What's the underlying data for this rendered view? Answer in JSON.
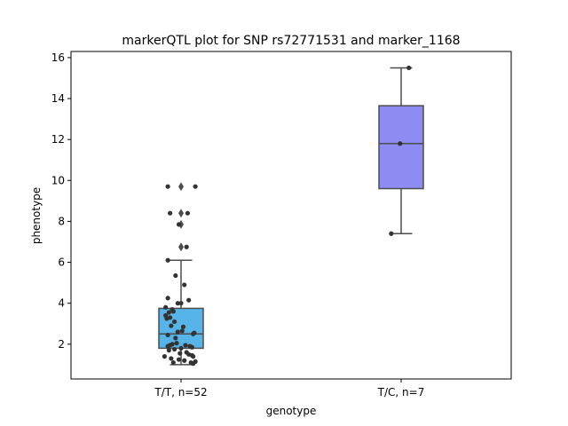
{
  "chart_data": {
    "type": "box",
    "title": "markerQTL plot for SNP rs72771531 and marker_1168",
    "xlabel": "genotype",
    "ylabel": "phenotype",
    "ylim": [
      0.3,
      16.3
    ],
    "yticks": [
      2,
      4,
      6,
      8,
      10,
      12,
      14,
      16
    ],
    "grid": false,
    "categories": [
      "T/T, n=52",
      "T/C, n=7"
    ],
    "boxes": [
      {
        "category": "T/T, n=52",
        "color": "#56B4E9",
        "whisker_low": 1.0,
        "q1": 1.8,
        "median": 2.5,
        "q3": 3.75,
        "whisker_high": 6.1,
        "outliers": [
          6.75,
          7.85,
          8.4,
          9.7
        ],
        "points": [
          [
            -0.12,
            9.7
          ],
          [
            -0.1,
            8.4
          ],
          [
            -0.12,
            6.1
          ],
          [
            -0.02,
            7.85
          ],
          [
            0.05,
            6.75
          ],
          [
            -0.05,
            5.35
          ],
          [
            -0.12,
            4.25
          ],
          [
            0.03,
            4.9
          ],
          [
            0.07,
            4.15
          ],
          [
            -0.03,
            4.0
          ],
          [
            0.0,
            4.0
          ],
          [
            -0.14,
            3.8
          ],
          [
            -0.08,
            3.7
          ],
          [
            -0.11,
            3.55
          ],
          [
            -0.07,
            3.6
          ],
          [
            0.13,
            9.7
          ],
          [
            0.06,
            8.4
          ],
          [
            -0.14,
            3.4
          ],
          [
            -0.1,
            3.3
          ],
          [
            -0.13,
            3.25
          ],
          [
            -0.06,
            3.1
          ],
          [
            -0.09,
            2.9
          ],
          [
            0.02,
            2.85
          ],
          [
            0.11,
            2.5
          ],
          [
            -0.03,
            2.6
          ],
          [
            -0.12,
            2.45
          ],
          [
            -0.05,
            2.3
          ],
          [
            0.01,
            2.65
          ],
          [
            0.12,
            2.55
          ],
          [
            -0.08,
            2.0
          ],
          [
            -0.1,
            1.95
          ],
          [
            -0.12,
            1.9
          ],
          [
            -0.04,
            2.05
          ],
          [
            0.0,
            1.8
          ],
          [
            0.04,
            1.95
          ],
          [
            0.08,
            1.9
          ],
          [
            0.1,
            1.85
          ],
          [
            -0.11,
            1.7
          ],
          [
            -0.06,
            1.75
          ],
          [
            0.05,
            1.6
          ],
          [
            -0.01,
            1.55
          ],
          [
            0.07,
            1.5
          ],
          [
            0.1,
            1.45
          ],
          [
            0.11,
            1.4
          ],
          [
            -0.15,
            1.4
          ],
          [
            -0.09,
            1.3
          ],
          [
            -0.02,
            1.25
          ],
          [
            0.03,
            1.2
          ],
          [
            -0.07,
            1.1
          ],
          [
            0.09,
            1.1
          ],
          [
            0.11,
            1.05
          ],
          [
            0.13,
            1.15
          ]
        ]
      },
      {
        "category": "T/C, n=7",
        "color": "#8C8CF2",
        "whisker_low": 7.4,
        "q1": 9.6,
        "median": 11.8,
        "q3": 13.65,
        "whisker_high": 15.5,
        "outliers": [],
        "points": [
          [
            -0.09,
            7.4
          ],
          [
            -0.01,
            11.8
          ],
          [
            0.07,
            15.5
          ]
        ]
      }
    ]
  }
}
